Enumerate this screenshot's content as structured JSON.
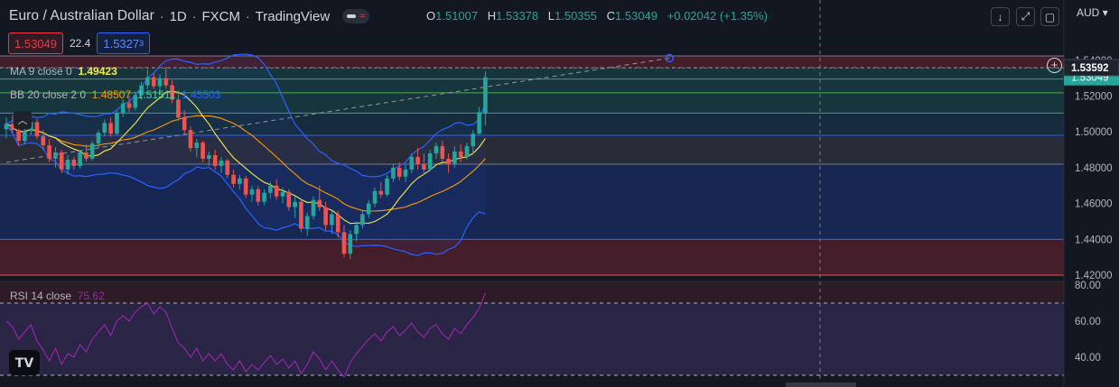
{
  "header": {
    "symbol": "Euro / Australian Dollar",
    "interval": "1D",
    "exchange": "FXCM",
    "provider": "TradingView",
    "sep": "·"
  },
  "ohlc": {
    "o_label": "O",
    "o": "1.51007",
    "h_label": "H",
    "h": "1.53378",
    "l_label": "L",
    "l": "1.50355",
    "c_label": "C",
    "c": "1.53049",
    "change": "+0.02042 (+1.35%)"
  },
  "trade_boxes": {
    "sell": "1.53049",
    "spread": "22.4",
    "buy_main": "1.5327",
    "buy_sup": "3"
  },
  "legends": {
    "ma": {
      "label": "MA 9 close 0",
      "value": "1.49423"
    },
    "bb": {
      "label": "BB 20 close 2 0",
      "basis": "1.48507",
      "upper": "1.51511",
      "lower": "1.45503"
    },
    "rsi": {
      "label": "RSI 14 close",
      "value": "75.62"
    }
  },
  "currency": "AUD",
  "colors": {
    "up": "#26a69a",
    "down": "#ef5350",
    "ma": "#f5e94a",
    "bb_basis": "#ff9800",
    "bb_bands": "#2962ff",
    "rsi": "#9c27b0",
    "bg": "#131722"
  },
  "chart_data": [
    {
      "type": "candlestick",
      "price_axis": {
        "ticks": [
          "1.54000",
          "1.52000",
          "1.50000",
          "1.48000",
          "1.46000",
          "1.44000",
          "1.42000"
        ],
        "range": [
          1.4165,
          1.5545
        ]
      },
      "current_price_label": "1.53592",
      "last_price_label": "1.53049",
      "horizontal_levels": [
        1.5424,
        1.5357,
        1.5295,
        1.5218,
        1.5105,
        1.4981,
        1.482,
        1.44,
        1.42
      ],
      "zones": [
        {
          "from": 1.5424,
          "to": 1.5357,
          "color": "red"
        },
        {
          "from": 1.5357,
          "to": 1.5105,
          "color": "green"
        },
        {
          "from": 1.5105,
          "to": 1.4981,
          "color": "teal"
        },
        {
          "from": 1.4981,
          "to": 1.482,
          "color": "gray"
        },
        {
          "from": 1.482,
          "to": 1.44,
          "color": "blue"
        },
        {
          "from": 1.44,
          "to": 1.42,
          "color": "red"
        }
      ],
      "trendline": [
        {
          "bar": 0,
          "price": 1.483
        },
        {
          "bar": 108,
          "price": 1.5412
        }
      ],
      "candles": [
        [
          1.5015,
          1.508,
          1.4965,
          1.5045
        ],
        [
          1.5045,
          1.5095,
          1.499,
          1.501
        ],
        [
          1.501,
          1.503,
          1.4925,
          1.495
        ],
        [
          1.495,
          1.502,
          1.493,
          1.5005
        ],
        [
          1.5005,
          1.507,
          1.4985,
          1.5055
        ],
        [
          1.5055,
          1.5075,
          1.496,
          1.4975
        ],
        [
          1.4975,
          1.501,
          1.49,
          1.4925
        ],
        [
          1.4925,
          1.496,
          1.483,
          1.485
        ],
        [
          1.485,
          1.4915,
          1.48,
          1.4885
        ],
        [
          1.4885,
          1.49,
          1.477,
          1.479
        ],
        [
          1.479,
          1.487,
          1.476,
          1.4845
        ],
        [
          1.4845,
          1.486,
          1.479,
          1.481
        ],
        [
          1.481,
          1.49,
          1.4795,
          1.4885
        ],
        [
          1.4885,
          1.493,
          1.4835,
          1.485
        ],
        [
          1.485,
          1.495,
          1.484,
          1.4935
        ],
        [
          1.4935,
          1.501,
          1.491,
          1.4995
        ],
        [
          1.4995,
          1.507,
          1.4975,
          1.505
        ],
        [
          1.505,
          1.508,
          1.4975,
          1.499
        ],
        [
          1.499,
          1.512,
          1.498,
          1.5105
        ],
        [
          1.5105,
          1.518,
          1.5085,
          1.516
        ],
        [
          1.516,
          1.52,
          1.511,
          1.5135
        ],
        [
          1.5135,
          1.5225,
          1.512,
          1.5205
        ],
        [
          1.5205,
          1.528,
          1.518,
          1.526
        ],
        [
          1.526,
          1.535,
          1.524,
          1.5305
        ],
        [
          1.5305,
          1.533,
          1.524,
          1.5255
        ],
        [
          1.5255,
          1.532,
          1.523,
          1.53
        ],
        [
          1.53,
          1.536,
          1.524,
          1.526
        ],
        [
          1.526,
          1.529,
          1.516,
          1.518
        ],
        [
          1.518,
          1.523,
          1.506,
          1.508
        ],
        [
          1.508,
          1.512,
          1.498,
          1.501
        ],
        [
          1.501,
          1.503,
          1.489,
          1.491
        ],
        [
          1.491,
          1.496,
          1.486,
          1.494
        ],
        [
          1.494,
          1.495,
          1.483,
          1.485
        ],
        [
          1.485,
          1.489,
          1.481,
          1.487
        ],
        [
          1.487,
          1.49,
          1.479,
          1.481
        ],
        [
          1.481,
          1.486,
          1.477,
          1.484
        ],
        [
          1.484,
          1.485,
          1.474,
          1.476
        ],
        [
          1.476,
          1.479,
          1.469,
          1.471
        ],
        [
          1.471,
          1.476,
          1.468,
          1.474
        ],
        [
          1.474,
          1.4755,
          1.463,
          1.465
        ],
        [
          1.465,
          1.47,
          1.461,
          1.468
        ],
        [
          1.468,
          1.47,
          1.459,
          1.461
        ],
        [
          1.461,
          1.468,
          1.459,
          1.466
        ],
        [
          1.466,
          1.472,
          1.463,
          1.47
        ],
        [
          1.47,
          1.4735,
          1.462,
          1.464
        ],
        [
          1.464,
          1.469,
          1.46,
          1.4665
        ],
        [
          1.4665,
          1.468,
          1.456,
          1.458
        ],
        [
          1.458,
          1.464,
          1.452,
          1.461
        ],
        [
          1.461,
          1.463,
          1.444,
          1.446
        ],
        [
          1.446,
          1.455,
          1.442,
          1.453
        ],
        [
          1.453,
          1.464,
          1.451,
          1.462
        ],
        [
          1.462,
          1.47,
          1.456,
          1.458
        ],
        [
          1.458,
          1.461,
          1.445,
          1.448
        ],
        [
          1.448,
          1.456,
          1.443,
          1.454
        ],
        [
          1.454,
          1.456,
          1.441,
          1.444
        ],
        [
          1.444,
          1.448,
          1.43,
          1.432
        ],
        [
          1.432,
          1.445,
          1.429,
          1.443
        ],
        [
          1.443,
          1.45,
          1.439,
          1.448
        ],
        [
          1.448,
          1.456,
          1.446,
          1.454
        ],
        [
          1.454,
          1.462,
          1.452,
          1.46
        ],
        [
          1.46,
          1.469,
          1.458,
          1.467
        ],
        [
          1.467,
          1.472,
          1.463,
          1.465
        ],
        [
          1.465,
          1.476,
          1.464,
          1.474
        ],
        [
          1.474,
          1.482,
          1.472,
          1.48
        ],
        [
          1.48,
          1.483,
          1.473,
          1.475
        ],
        [
          1.475,
          1.482,
          1.472,
          1.479
        ],
        [
          1.479,
          1.488,
          1.477,
          1.486
        ],
        [
          1.486,
          1.491,
          1.479,
          1.482
        ],
        [
          1.482,
          1.488,
          1.476,
          1.479
        ],
        [
          1.479,
          1.49,
          1.478,
          1.488
        ],
        [
          1.488,
          1.494,
          1.485,
          1.492
        ],
        [
          1.492,
          1.495,
          1.483,
          1.485
        ],
        [
          1.485,
          1.488,
          1.477,
          1.482
        ],
        [
          1.482,
          1.492,
          1.48,
          1.489
        ],
        [
          1.489,
          1.493,
          1.483,
          1.486
        ],
        [
          1.486,
          1.494,
          1.4845,
          1.492
        ],
        [
          1.492,
          1.501,
          1.488,
          1.499
        ],
        [
          1.499,
          1.514,
          1.4985,
          1.511
        ],
        [
          1.5101,
          1.5338,
          1.5036,
          1.5305
        ]
      ]
    },
    {
      "type": "line",
      "name": "RSI 14 close",
      "y_axis": {
        "ticks": [
          "80.00",
          "60.00",
          "40.00"
        ],
        "range": [
          28,
          82
        ]
      },
      "levels": [
        70,
        30
      ],
      "values": [
        60,
        57,
        50,
        54,
        58,
        49,
        44,
        38,
        45,
        36,
        42,
        40,
        47,
        43,
        50,
        54,
        58,
        52,
        60,
        63,
        60,
        65,
        68,
        70,
        64,
        68,
        65,
        56,
        48,
        45,
        40,
        45,
        38,
        42,
        38,
        42,
        36,
        33,
        38,
        32,
        36,
        33,
        37,
        41,
        36,
        39,
        34,
        38,
        31,
        36,
        43,
        39,
        33,
        38,
        33,
        29,
        37,
        42,
        46,
        50,
        53,
        49,
        54,
        57,
        52,
        55,
        59,
        54,
        51,
        56,
        58,
        53,
        50,
        56,
        53,
        58,
        62,
        67,
        75.6
      ]
    }
  ]
}
